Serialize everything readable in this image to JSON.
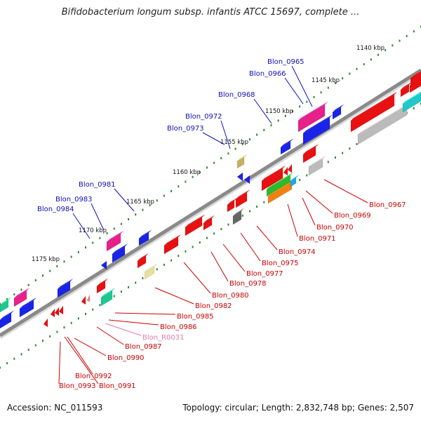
{
  "title": "Bifidobacterium longum subsp. infantis ATCC 15697, complete ...",
  "footer": {
    "accession": "Accession: NC_011593",
    "summary": "Topology: circular; Length: 2,832,748 bp; Genes: 2,507"
  },
  "colors": {
    "forward_label": "#1010b8",
    "reverse_label": "#cc0000",
    "rna_label": "#e07aa8",
    "backbone": "#8a8a8a",
    "tick": "#2a8a2a"
  },
  "kbp_ticks": [
    {
      "id": "1140",
      "label": "1140 kbp"
    },
    {
      "id": "1145",
      "label": "1145 kbp"
    },
    {
      "id": "1150",
      "label": "1150 kbp"
    },
    {
      "id": "1155",
      "label": "1155 kbp"
    },
    {
      "id": "1160",
      "label": "1160 kbp"
    },
    {
      "id": "1165",
      "label": "1165 kbp"
    },
    {
      "id": "1170",
      "label": "1170 kbp"
    },
    {
      "id": "1175",
      "label": "1175 kbp"
    }
  ],
  "gene_labels": {
    "Blon_0965": "Blon_0965",
    "Blon_0966": "Blon_0966",
    "Blon_0968": "Blon_0968",
    "Blon_0972": "Blon_0972",
    "Blon_0973": "Blon_0973",
    "Blon_0981": "Blon_0981",
    "Blon_0983": "Blon_0983",
    "Blon_0984": "Blon_0984",
    "Blon_0967": "Blon_0967",
    "Blon_0969": "Blon_0969",
    "Blon_0970": "Blon_0970",
    "Blon_0971": "Blon_0971",
    "Blon_0974": "Blon_0974",
    "Blon_0975": "Blon_0975",
    "Blon_0977": "Blon_0977",
    "Blon_0978": "Blon_0978",
    "Blon_0980": "Blon_0980",
    "Blon_0982": "Blon_0982",
    "Blon_0985": "Blon_0985",
    "Blon_0986": "Blon_0986",
    "Blon_R0031": "Blon_R0031",
    "Blon_0987": "Blon_0987",
    "Blon_0990": "Blon_0990",
    "Blon_0992": "Blon_0992",
    "Blon_0993": "Blon_0993",
    "Blon_0991": "Blon_0991"
  }
}
